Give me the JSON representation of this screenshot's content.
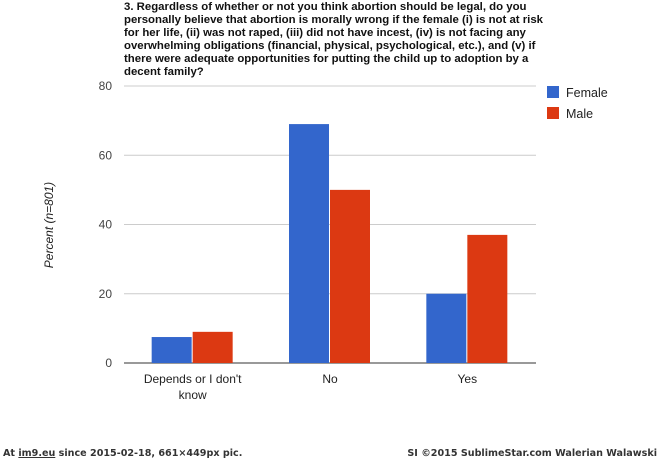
{
  "chart_data": {
    "type": "bar",
    "title": "3. Regardless of whether or not you think abortion should be legal, do you personally believe that abortion is morally wrong if the female (i) is not at risk for her life, (ii) was not raped, (iii) did not have incest, (iv) is not facing any overwhelming obligations (financial, physical, psychological, etc.), and (v) if there were adequate opportunities for putting the child up to adoption by a decent family?",
    "categories": [
      "Depends or I don't know",
      "No",
      "Yes"
    ],
    "category_lines": [
      [
        "Depends or I don't",
        "know"
      ],
      [
        "No"
      ],
      [
        "Yes"
      ]
    ],
    "series": [
      {
        "name": "Female",
        "color": "#3366cc",
        "values": [
          7.5,
          69,
          20
        ]
      },
      {
        "name": "Male",
        "color": "#dc3912",
        "values": [
          9,
          50,
          37
        ]
      }
    ],
    "ylabel": "Percent (n=801)",
    "xlabel": "",
    "ylim": [
      0,
      80
    ],
    "yticks": [
      0,
      20,
      40,
      60,
      80
    ],
    "grid": true,
    "legend_position": "right"
  },
  "footer": {
    "prefix": "At ",
    "site": "im9.eu",
    "suffix": " since 2015-02-18, 661×449px pic.",
    "right": "SI ©2015 SublimeStar.com Walerian Walawski"
  }
}
